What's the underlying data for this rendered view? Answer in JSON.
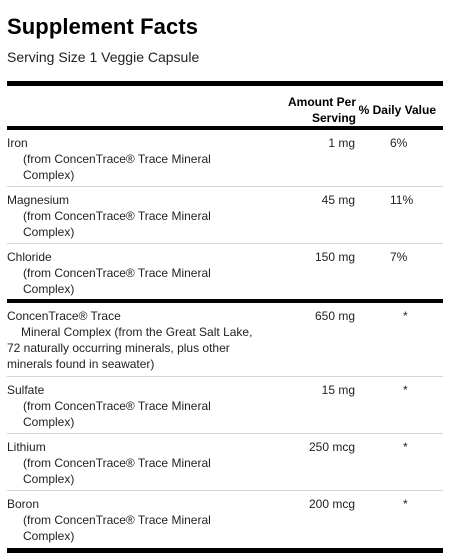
{
  "panel": {
    "title": "Supplement Facts",
    "serving_size": "Serving Size 1 Veggie Capsule"
  },
  "columns": {
    "amount_line1": "Amount Per",
    "amount_line2": "Serving",
    "daily_value": "% Daily Value"
  },
  "nutrients": [
    {
      "name": "Iron",
      "source": "(from ConcenTrace® Trace Mineral Complex)",
      "amount": "1 mg",
      "dv": "6%"
    },
    {
      "name": "Magnesium",
      "source": "(from ConcenTrace® Trace Mineral Complex)",
      "amount": "45 mg",
      "dv": "11%"
    },
    {
      "name": "Chloride",
      "source": "(from ConcenTrace® Trace Mineral Complex)",
      "amount": "150 mg",
      "dv": "7%"
    }
  ],
  "complex": {
    "line1": "ConcenTrace® Trace",
    "line2": "Mineral Complex (from the Great Salt Lake,",
    "line3": "72 naturally occurring minerals, plus other",
    "line4": "minerals found in seawater)",
    "amount": "650 mg",
    "dv": "*"
  },
  "others": [
    {
      "name": "Sulfate",
      "source": "(from ConcenTrace® Trace Mineral Complex)",
      "amount": "15 mg",
      "dv": "*"
    },
    {
      "name": "Lithium",
      "source": "(from ConcenTrace® Trace Mineral Complex)",
      "amount": "250 mcg",
      "dv": "*"
    },
    {
      "name": "Boron",
      "source": "(from ConcenTrace® Trace Mineral Complex)",
      "amount": "200 mcg",
      "dv": "*"
    }
  ]
}
